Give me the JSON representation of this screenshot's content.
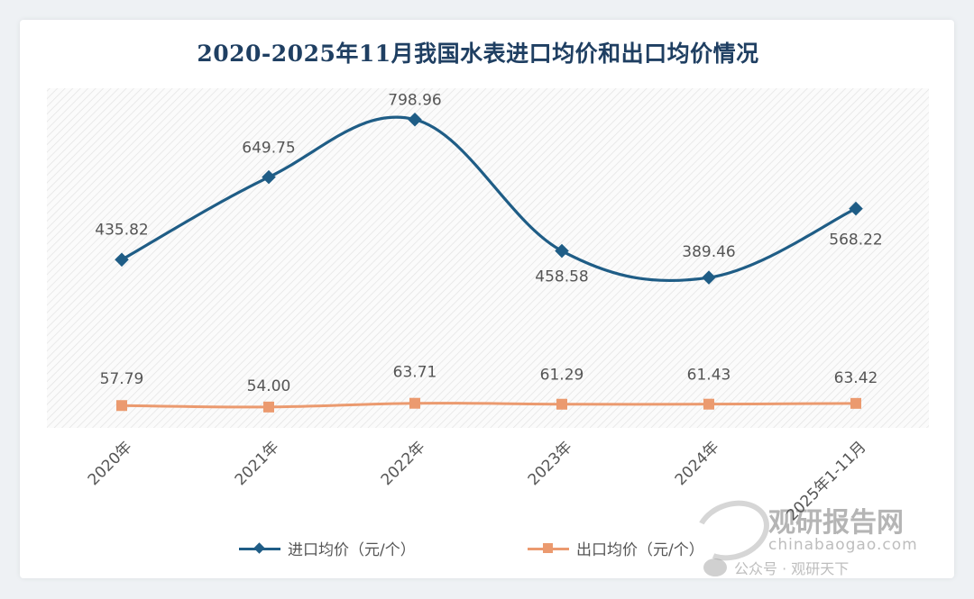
{
  "chart_data": {
    "type": "line",
    "title": "2020-2025年11月我国水表进口均价和出口均价情况",
    "categories": [
      "2020年",
      "2021年",
      "2022年",
      "2023年",
      "2024年",
      "2025年1-11月"
    ],
    "series": [
      {
        "name": "进口均价（元/个）",
        "values": [
          435.82,
          649.75,
          798.96,
          458.58,
          389.46,
          568.22
        ],
        "labels": [
          "435.82",
          "649.75",
          "798.96",
          "458.58",
          "389.46",
          "568.22"
        ],
        "color": "#1f5d86",
        "marker": "diamond"
      },
      {
        "name": "出口均价（元/个）",
        "values": [
          57.79,
          54.0,
          63.71,
          61.29,
          61.43,
          63.42
        ],
        "labels": [
          "57.79",
          "54.00",
          "63.71",
          "61.29",
          "61.43",
          "63.42"
        ],
        "color": "#eb9a6f",
        "marker": "square"
      }
    ],
    "ylim": [
      0,
      880
    ],
    "grid": false,
    "legend_position": "bottom"
  },
  "watermark": {
    "brand": "观研报告网",
    "site": "chinabaogao.com",
    "account": "公众号 · 观研天下"
  }
}
